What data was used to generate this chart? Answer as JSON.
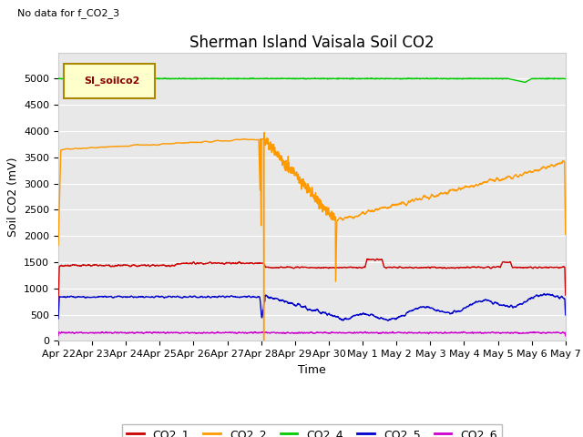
{
  "title": "Sherman Island Vaisala Soil CO2",
  "no_data_text": "No data for f_CO2_3",
  "xlabel": "Time",
  "ylabel": "Soil CO2 (mV)",
  "ylim": [
    0,
    5500
  ],
  "yticks": [
    0,
    500,
    1000,
    1500,
    2000,
    2500,
    3000,
    3500,
    4000,
    4500,
    5000
  ],
  "x_tick_labels": [
    "Apr 22",
    "Apr 23",
    "Apr 24",
    "Apr 25",
    "Apr 26",
    "Apr 27",
    "Apr 28",
    "Apr 29",
    "Apr 30",
    "May 1",
    "May 2",
    "May 3",
    "May 4",
    "May 5",
    "May 6",
    "May 7"
  ],
  "legend_label": "SI_soilco2",
  "legend_bg": "#ffffcc",
  "legend_border": "#aa8800",
  "bg_color": "#e8e8e8",
  "colors": {
    "CO2_1": "#cc0000",
    "CO2_2": "#ff9900",
    "CO2_4": "#00cc00",
    "CO2_5": "#0000cc",
    "CO2_6": "#cc00cc"
  },
  "title_fontsize": 12,
  "axis_label_fontsize": 9,
  "tick_fontsize": 8
}
